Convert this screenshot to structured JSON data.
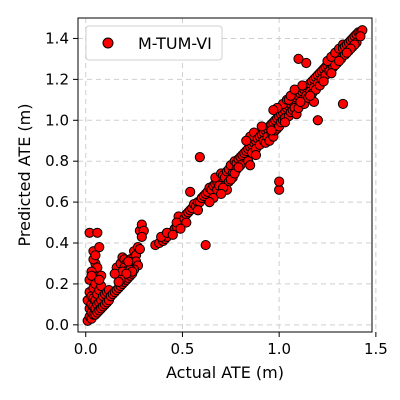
{
  "chart_data": {
    "type": "scatter",
    "title": "",
    "xlabel": "Actual ATE (m)",
    "ylabel": "Predicted ATE (m)",
    "xlim": [
      -0.04,
      1.48
    ],
    "ylim": [
      -0.035,
      1.5
    ],
    "xticks": [
      0.0,
      0.5,
      1.0,
      1.5
    ],
    "yticks": [
      0.0,
      0.2,
      0.4,
      0.6,
      0.8,
      1.0,
      1.2,
      1.4
    ],
    "grid": true,
    "legend": {
      "position": "top-left",
      "entries": [
        "M-TUM-VI"
      ]
    },
    "series": [
      {
        "name": "M-TUM-VI",
        "marker_color": "#ff0000",
        "edge_color": "#000000",
        "points": [
          [
            0.01,
            0.02
          ],
          [
            0.02,
            0.04
          ],
          [
            0.02,
            0.08
          ],
          [
            0.01,
            0.12
          ],
          [
            0.02,
            0.16
          ],
          [
            0.03,
            0.03
          ],
          [
            0.03,
            0.06
          ],
          [
            0.03,
            0.1
          ],
          [
            0.03,
            0.14
          ],
          [
            0.02,
            0.22
          ],
          [
            0.04,
            0.05
          ],
          [
            0.04,
            0.09
          ],
          [
            0.04,
            0.13
          ],
          [
            0.04,
            0.18
          ],
          [
            0.05,
            0.05
          ],
          [
            0.05,
            0.08
          ],
          [
            0.05,
            0.12
          ],
          [
            0.05,
            0.2
          ],
          [
            0.06,
            0.06
          ],
          [
            0.06,
            0.1
          ],
          [
            0.06,
            0.15
          ],
          [
            0.06,
            0.24
          ],
          [
            0.07,
            0.07
          ],
          [
            0.07,
            0.11
          ],
          [
            0.07,
            0.17
          ],
          [
            0.08,
            0.08
          ],
          [
            0.08,
            0.12
          ],
          [
            0.08,
            0.19
          ],
          [
            0.09,
            0.09
          ],
          [
            0.09,
            0.14
          ],
          [
            0.1,
            0.1
          ],
          [
            0.1,
            0.15
          ],
          [
            0.11,
            0.11
          ],
          [
            0.11,
            0.16
          ],
          [
            0.12,
            0.12
          ],
          [
            0.12,
            0.17
          ],
          [
            0.13,
            0.14
          ],
          [
            0.14,
            0.15
          ],
          [
            0.15,
            0.16
          ],
          [
            0.16,
            0.17
          ],
          [
            0.17,
            0.18
          ],
          [
            0.18,
            0.19
          ],
          [
            0.19,
            0.2
          ],
          [
            0.2,
            0.21
          ],
          [
            0.21,
            0.22
          ],
          [
            0.22,
            0.23
          ],
          [
            0.23,
            0.24
          ],
          [
            0.24,
            0.25
          ],
          [
            0.02,
            0.45
          ],
          [
            0.06,
            0.45
          ],
          [
            0.04,
            0.36
          ],
          [
            0.05,
            0.3
          ],
          [
            0.07,
            0.38
          ],
          [
            0.06,
            0.28
          ],
          [
            0.03,
            0.26
          ],
          [
            0.04,
            0.32
          ],
          [
            0.08,
            0.24
          ],
          [
            0.05,
            0.34
          ],
          [
            0.03,
            0.24
          ],
          [
            0.07,
            0.22
          ],
          [
            0.16,
            0.28
          ],
          [
            0.17,
            0.24
          ],
          [
            0.18,
            0.3
          ],
          [
            0.19,
            0.33
          ],
          [
            0.2,
            0.32
          ],
          [
            0.21,
            0.3
          ],
          [
            0.2,
            0.28
          ],
          [
            0.22,
            0.27
          ],
          [
            0.19,
            0.26
          ],
          [
            0.23,
            0.32
          ],
          [
            0.24,
            0.3
          ],
          [
            0.25,
            0.33
          ],
          [
            0.25,
            0.36
          ],
          [
            0.26,
            0.34
          ],
          [
            0.27,
            0.38
          ],
          [
            0.28,
            0.37
          ],
          [
            0.28,
            0.46
          ],
          [
            0.29,
            0.49
          ],
          [
            0.3,
            0.46
          ],
          [
            0.29,
            0.43
          ],
          [
            0.26,
            0.31
          ],
          [
            0.27,
            0.29
          ],
          [
            0.25,
            0.27
          ],
          [
            0.23,
            0.27
          ],
          [
            0.24,
            0.26
          ],
          [
            0.22,
            0.31
          ],
          [
            0.21,
            0.25
          ],
          [
            0.18,
            0.22
          ],
          [
            0.17,
            0.21
          ],
          [
            0.15,
            0.25
          ],
          [
            0.36,
            0.39
          ],
          [
            0.38,
            0.4
          ],
          [
            0.4,
            0.41
          ],
          [
            0.41,
            0.42
          ],
          [
            0.42,
            0.43
          ],
          [
            0.44,
            0.45
          ],
          [
            0.46,
            0.47
          ],
          [
            0.47,
            0.48
          ],
          [
            0.49,
            0.5
          ],
          [
            0.5,
            0.51
          ],
          [
            0.39,
            0.43
          ],
          [
            0.42,
            0.45
          ],
          [
            0.45,
            0.44
          ],
          [
            0.48,
            0.53
          ],
          [
            0.47,
            0.5
          ],
          [
            0.51,
            0.52
          ],
          [
            0.52,
            0.54
          ],
          [
            0.53,
            0.55
          ],
          [
            0.54,
            0.56
          ],
          [
            0.55,
            0.57
          ],
          [
            0.52,
            0.5
          ],
          [
            0.49,
            0.47
          ],
          [
            0.56,
            0.59
          ],
          [
            0.57,
            0.58
          ],
          [
            0.58,
            0.6
          ],
          [
            0.59,
            0.6
          ],
          [
            0.6,
            0.62
          ],
          [
            0.61,
            0.63
          ],
          [
            0.62,
            0.64
          ],
          [
            0.63,
            0.65
          ],
          [
            0.54,
            0.65
          ],
          [
            0.58,
            0.56
          ],
          [
            0.59,
            0.82
          ],
          [
            0.62,
            0.39
          ],
          [
            0.64,
            0.67
          ],
          [
            0.65,
            0.66
          ],
          [
            0.66,
            0.68
          ],
          [
            0.67,
            0.69
          ],
          [
            0.68,
            0.7
          ],
          [
            0.69,
            0.71
          ],
          [
            0.66,
            0.62
          ],
          [
            0.67,
            0.72
          ],
          [
            0.68,
            0.66
          ],
          [
            0.69,
            0.68
          ],
          [
            0.7,
            0.74
          ],
          [
            0.71,
            0.73
          ],
          [
            0.72,
            0.72
          ],
          [
            0.73,
            0.75
          ],
          [
            0.74,
            0.76
          ],
          [
            0.75,
            0.78
          ],
          [
            0.72,
            0.68
          ],
          [
            0.74,
            0.7
          ],
          [
            0.73,
            0.66
          ],
          [
            0.76,
            0.74
          ],
          [
            0.77,
            0.8
          ],
          [
            0.78,
            0.79
          ],
          [
            0.79,
            0.81
          ],
          [
            0.8,
            0.82
          ],
          [
            0.81,
            0.83
          ],
          [
            0.82,
            0.84
          ],
          [
            0.78,
            0.76
          ],
          [
            0.8,
            0.78
          ],
          [
            0.76,
            0.72
          ],
          [
            0.75,
            0.71
          ],
          [
            0.83,
            0.85
          ],
          [
            0.84,
            0.86
          ],
          [
            0.85,
            0.87
          ],
          [
            0.86,
            0.88
          ],
          [
            0.87,
            0.89
          ],
          [
            0.88,
            0.9
          ],
          [
            0.84,
            0.8
          ],
          [
            0.86,
            0.84
          ],
          [
            0.85,
            0.92
          ],
          [
            0.87,
            0.94
          ],
          [
            0.89,
            0.91
          ],
          [
            0.9,
            0.92
          ],
          [
            0.91,
            0.93
          ],
          [
            0.92,
            0.94
          ],
          [
            0.93,
            0.95
          ],
          [
            0.94,
            0.96
          ],
          [
            0.88,
            0.86
          ],
          [
            0.9,
            0.88
          ],
          [
            0.92,
            0.9
          ],
          [
            0.93,
            0.89
          ],
          [
            0.95,
            0.97
          ],
          [
            0.96,
            0.98
          ],
          [
            0.97,
            0.99
          ],
          [
            0.98,
            1.0
          ],
          [
            0.99,
            1.01
          ],
          [
            1.0,
            1.02
          ],
          [
            0.94,
            0.92
          ],
          [
            0.96,
            0.94
          ],
          [
            0.95,
            0.9
          ],
          [
            0.97,
            0.92
          ],
          [
            0.98,
            0.95
          ],
          [
            0.99,
            0.96
          ],
          [
            1.01,
            1.03
          ],
          [
            1.02,
            1.04
          ],
          [
            1.03,
            1.05
          ],
          [
            1.04,
            1.06
          ],
          [
            1.0,
            0.97
          ],
          [
            1.01,
            0.99
          ],
          [
            1.02,
            1.0
          ],
          [
            1.03,
            1.01
          ],
          [
            1.05,
            1.07
          ],
          [
            1.06,
            1.08
          ],
          [
            1.07,
            1.09
          ],
          [
            1.08,
            1.1
          ],
          [
            1.09,
            1.11
          ],
          [
            1.1,
            1.12
          ],
          [
            1.02,
            1.08
          ],
          [
            1.04,
            1.1
          ],
          [
            1.05,
            1.02
          ],
          [
            1.06,
            1.04
          ],
          [
            1.07,
            1.05
          ],
          [
            1.08,
            1.06
          ],
          [
            1.09,
            1.03
          ],
          [
            1.1,
            1.06
          ],
          [
            1.11,
            1.13
          ],
          [
            1.12,
            1.14
          ],
          [
            1.13,
            1.15
          ],
          [
            1.14,
            1.16
          ],
          [
            1.15,
            1.17
          ],
          [
            1.16,
            1.18
          ],
          [
            1.17,
            1.19
          ],
          [
            1.18,
            1.2
          ],
          [
            1.19,
            1.21
          ],
          [
            1.2,
            1.22
          ],
          [
            1.21,
            1.23
          ],
          [
            1.22,
            1.24
          ],
          [
            1.12,
            1.1
          ],
          [
            1.14,
            1.12
          ],
          [
            1.16,
            1.14
          ],
          [
            1.18,
            1.16
          ],
          [
            1.2,
            1.18
          ],
          [
            1.13,
            1.08
          ],
          [
            1.15,
            1.11
          ],
          [
            1.17,
            1.13
          ],
          [
            1.19,
            1.15
          ],
          [
            1.21,
            1.17
          ],
          [
            1.23,
            1.25
          ],
          [
            1.24,
            1.26
          ],
          [
            1.25,
            1.27
          ],
          [
            1.26,
            1.28
          ],
          [
            1.27,
            1.29
          ],
          [
            1.28,
            1.3
          ],
          [
            1.29,
            1.31
          ],
          [
            1.3,
            1.32
          ],
          [
            1.31,
            1.33
          ],
          [
            1.32,
            1.34
          ],
          [
            1.22,
            1.2
          ],
          [
            1.24,
            1.22
          ],
          [
            1.26,
            1.24
          ],
          [
            1.28,
            1.26
          ],
          [
            1.3,
            1.28
          ],
          [
            1.25,
            1.29
          ],
          [
            1.27,
            1.31
          ],
          [
            1.29,
            1.33
          ],
          [
            1.31,
            1.35
          ],
          [
            1.33,
            1.37
          ],
          [
            1.33,
            1.35
          ],
          [
            1.34,
            1.36
          ],
          [
            1.35,
            1.37
          ],
          [
            1.36,
            1.38
          ],
          [
            1.37,
            1.39
          ],
          [
            1.38,
            1.4
          ],
          [
            1.39,
            1.41
          ],
          [
            1.4,
            1.42
          ],
          [
            1.41,
            1.43
          ],
          [
            1.42,
            1.43
          ],
          [
            1.32,
            1.3
          ],
          [
            1.34,
            1.32
          ],
          [
            1.36,
            1.34
          ],
          [
            1.38,
            1.36
          ],
          [
            1.4,
            1.38
          ],
          [
            1.43,
            1.44
          ],
          [
            1.42,
            1.41
          ],
          [
            1.39,
            1.37
          ],
          [
            1.37,
            1.35
          ],
          [
            1.35,
            1.33
          ],
          [
            1.0,
            0.66
          ],
          [
            1.0,
            0.7
          ],
          [
            0.85,
            0.78
          ],
          [
            1.2,
            1.0
          ],
          [
            1.33,
            1.08
          ],
          [
            1.14,
            1.28
          ],
          [
            1.1,
            1.3
          ],
          [
            1.05,
            1.1
          ],
          [
            0.99,
            1.06
          ],
          [
            1.18,
            1.09
          ],
          [
            0.97,
            1.05
          ],
          [
            0.91,
            0.97
          ],
          [
            0.83,
            0.9
          ],
          [
            0.77,
            0.74
          ],
          [
            0.71,
            0.67
          ],
          [
            0.64,
            0.6
          ],
          [
            0.7,
            0.64
          ],
          [
            0.79,
            0.77
          ],
          [
            0.88,
            0.83
          ],
          [
            0.96,
            0.95
          ],
          [
            1.03,
            0.99
          ],
          [
            1.11,
            1.09
          ],
          [
            1.16,
            1.12
          ],
          [
            1.23,
            1.19
          ],
          [
            1.27,
            1.23
          ],
          [
            1.29,
            1.27
          ],
          [
            1.31,
            1.29
          ],
          [
            1.06,
            1.12
          ],
          [
            1.08,
            1.15
          ],
          [
            1.12,
            1.17
          ]
        ]
      }
    ]
  }
}
